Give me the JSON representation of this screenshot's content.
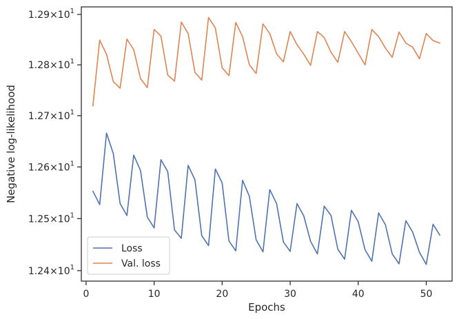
{
  "chart_data": {
    "type": "line",
    "title": "",
    "xlabel": "Epochs",
    "ylabel": "Negative log-likelihood",
    "yscale": "log",
    "xlim": [
      -0.7,
      53.8
    ],
    "ylim": [
      12.38,
      12.915
    ],
    "grid": false,
    "legend_position": "lower-left",
    "x_ticks": [
      0,
      10,
      20,
      30,
      40,
      50
    ],
    "x_tick_labels": [
      "0",
      "10",
      "20",
      "30",
      "40",
      "50"
    ],
    "y_ticks": [
      12.4,
      12.5,
      12.6,
      12.7,
      12.8,
      12.9
    ],
    "y_tick_labels": [
      {
        "base": "1.24",
        "times": "×",
        "power_base": "10",
        "exp": "1"
      },
      {
        "base": "1.25",
        "times": "×",
        "power_base": "10",
        "exp": "1"
      },
      {
        "base": "1.26",
        "times": "×",
        "power_base": "10",
        "exp": "1"
      },
      {
        "base": "1.27",
        "times": "×",
        "power_base": "10",
        "exp": "1"
      },
      {
        "base": "1.28",
        "times": "×",
        "power_base": "10",
        "exp": "1"
      },
      {
        "base": "1.29",
        "times": "×",
        "power_base": "10",
        "exp": "1"
      }
    ],
    "x": [
      1,
      2,
      3,
      4,
      5,
      6,
      7,
      8,
      9,
      10,
      11,
      12,
      13,
      14,
      15,
      16,
      17,
      18,
      19,
      20,
      21,
      22,
      23,
      24,
      25,
      26,
      27,
      28,
      29,
      30,
      31,
      32,
      33,
      34,
      35,
      36,
      37,
      38,
      39,
      40,
      41,
      42,
      43,
      44,
      45,
      46,
      47,
      48,
      49,
      50,
      51,
      52
    ],
    "series": [
      {
        "name": "Loss",
        "color": "#4c72b0",
        "values": [
          12.553,
          12.527,
          12.666,
          12.626,
          12.529,
          12.506,
          12.623,
          12.593,
          12.503,
          12.482,
          12.614,
          12.591,
          12.478,
          12.462,
          12.603,
          12.575,
          12.467,
          12.448,
          12.596,
          12.569,
          12.457,
          12.438,
          12.574,
          12.543,
          12.459,
          12.436,
          12.556,
          12.529,
          12.455,
          12.437,
          12.529,
          12.505,
          12.456,
          12.432,
          12.524,
          12.506,
          12.441,
          12.422,
          12.516,
          12.494,
          12.44,
          12.418,
          12.511,
          12.488,
          12.432,
          12.413,
          12.496,
          12.474,
          12.435,
          12.412,
          12.489,
          12.468
        ]
      },
      {
        "name": "Val. loss",
        "color": "#dd8452",
        "values": [
          12.719,
          12.849,
          12.821,
          12.767,
          12.754,
          12.851,
          12.83,
          12.773,
          12.755,
          12.87,
          12.857,
          12.78,
          12.768,
          12.885,
          12.862,
          12.785,
          12.77,
          12.894,
          12.873,
          12.794,
          12.779,
          12.884,
          12.856,
          12.8,
          12.783,
          12.881,
          12.862,
          12.822,
          12.806,
          12.866,
          12.84,
          12.821,
          12.799,
          12.866,
          12.854,
          12.825,
          12.805,
          12.866,
          12.846,
          12.823,
          12.8,
          12.87,
          12.856,
          12.833,
          12.815,
          12.865,
          12.843,
          12.835,
          12.812,
          12.862,
          12.848,
          12.843
        ]
      }
    ]
  }
}
